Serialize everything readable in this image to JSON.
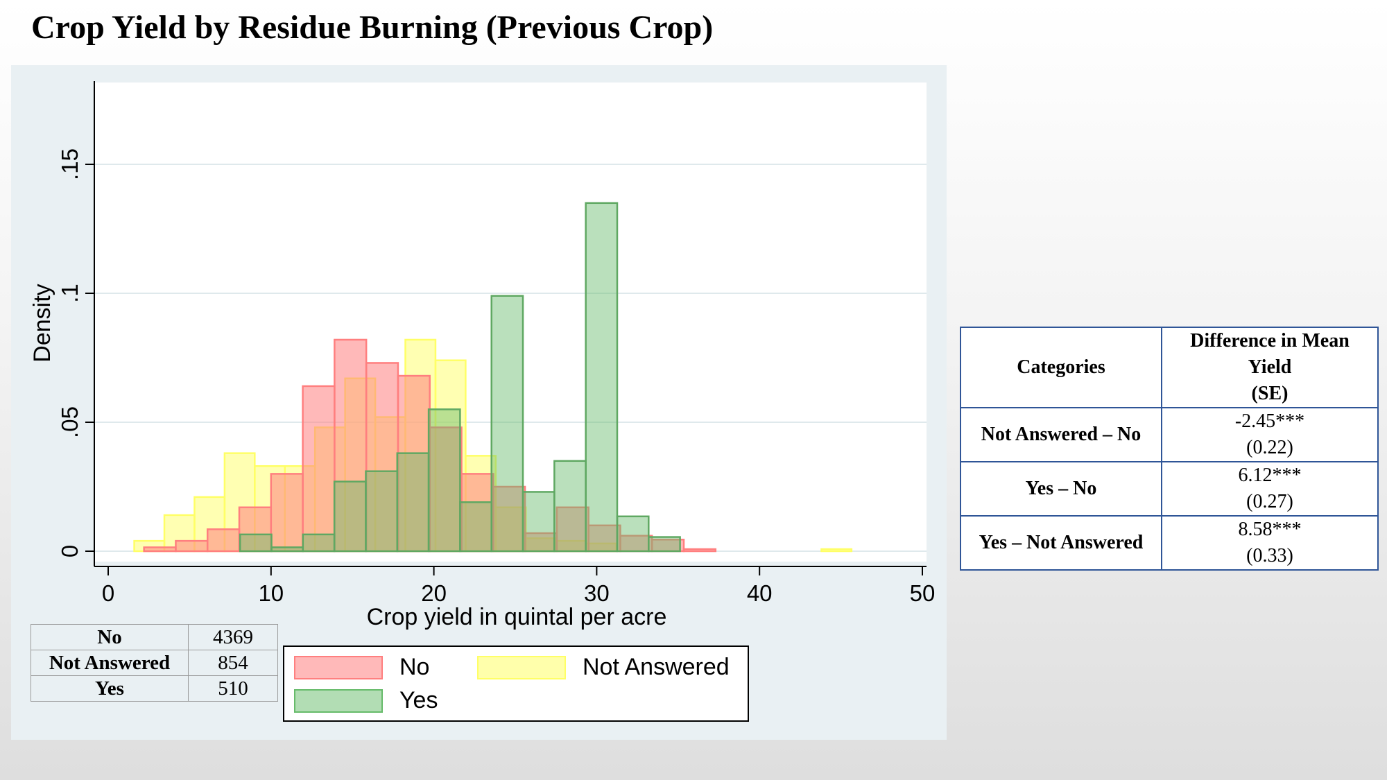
{
  "title": "Crop Yield by Residue Burning (Previous Crop)",
  "colors": {
    "No": "#ff7f7f",
    "Not Answered": "#ffff66",
    "Yes": "#66bb6a",
    "panel": "#e9f0f3",
    "table_border": "#2f5597"
  },
  "chart_data": {
    "type": "bar",
    "subtype": "overlaid-histogram",
    "xlabel": "Crop yield in quintal per acre",
    "ylabel": "Density",
    "xlim": [
      0,
      50
    ],
    "ylim": [
      0,
      0.15
    ],
    "xticks": [
      0,
      10,
      20,
      30,
      40,
      50
    ],
    "xtick_labels": [
      "0",
      "10",
      "20",
      "30",
      "40",
      "50"
    ],
    "yticks": [
      0,
      0.05,
      0.1,
      0.15
    ],
    "ytick_labels": [
      "0",
      ".05",
      ".1",
      ".15"
    ],
    "grid": "horizontal",
    "legend_position": "bottom",
    "series": [
      {
        "name": "Not Answered",
        "bin_width": 1.85,
        "bins": [
          {
            "x0": 1.6,
            "value": 0.004
          },
          {
            "x0": 3.45,
            "value": 0.014
          },
          {
            "x0": 5.3,
            "value": 0.021
          },
          {
            "x0": 7.15,
            "value": 0.038
          },
          {
            "x0": 9.0,
            "value": 0.033
          },
          {
            "x0": 10.85,
            "value": 0.033
          },
          {
            "x0": 12.7,
            "value": 0.048
          },
          {
            "x0": 14.55,
            "value": 0.067
          },
          {
            "x0": 16.4,
            "value": 0.052
          },
          {
            "x0": 18.25,
            "value": 0.082
          },
          {
            "x0": 20.1,
            "value": 0.074
          },
          {
            "x0": 21.95,
            "value": 0.037
          },
          {
            "x0": 23.8,
            "value": 0.017
          },
          {
            "x0": 25.65,
            "value": 0.005
          },
          {
            "x0": 27.5,
            "value": 0.004
          },
          {
            "x0": 29.35,
            "value": 0.003
          },
          {
            "x0": 43.8,
            "value": 0.0008
          }
        ]
      },
      {
        "name": "No",
        "bin_width": 1.95,
        "bins": [
          {
            "x0": 2.2,
            "value": 0.0015
          },
          {
            "x0": 4.15,
            "value": 0.004
          },
          {
            "x0": 6.1,
            "value": 0.0085
          },
          {
            "x0": 8.05,
            "value": 0.017
          },
          {
            "x0": 10.0,
            "value": 0.03
          },
          {
            "x0": 11.95,
            "value": 0.064
          },
          {
            "x0": 13.9,
            "value": 0.082
          },
          {
            "x0": 15.85,
            "value": 0.073
          },
          {
            "x0": 17.8,
            "value": 0.068
          },
          {
            "x0": 19.75,
            "value": 0.048
          },
          {
            "x0": 21.7,
            "value": 0.03
          },
          {
            "x0": 23.65,
            "value": 0.025
          },
          {
            "x0": 25.6,
            "value": 0.007
          },
          {
            "x0": 27.55,
            "value": 0.017
          },
          {
            "x0": 29.5,
            "value": 0.01
          },
          {
            "x0": 31.45,
            "value": 0.006
          },
          {
            "x0": 33.4,
            "value": 0.0045
          },
          {
            "x0": 35.35,
            "value": 0.0008
          }
        ]
      },
      {
        "name": "Yes",
        "bin_width": 1.93,
        "bins": [
          {
            "x0": 8.1,
            "value": 0.0065
          },
          {
            "x0": 10.03,
            "value": 0.0015
          },
          {
            "x0": 11.96,
            "value": 0.0065
          },
          {
            "x0": 13.89,
            "value": 0.027
          },
          {
            "x0": 15.82,
            "value": 0.031
          },
          {
            "x0": 17.75,
            "value": 0.038
          },
          {
            "x0": 19.68,
            "value": 0.055
          },
          {
            "x0": 21.61,
            "value": 0.019
          },
          {
            "x0": 23.54,
            "value": 0.099
          },
          {
            "x0": 25.47,
            "value": 0.023
          },
          {
            "x0": 27.4,
            "value": 0.035
          },
          {
            "x0": 29.33,
            "value": 0.135
          },
          {
            "x0": 31.26,
            "value": 0.0135
          },
          {
            "x0": 33.19,
            "value": 0.0055
          }
        ]
      }
    ]
  },
  "counts_table": [
    {
      "category": "No",
      "count": "4369"
    },
    {
      "category": "Not Answered",
      "count": "854"
    },
    {
      "category": "Yes",
      "count": "510"
    }
  ],
  "legend": [
    {
      "label": "No",
      "color": "#ff7f7f"
    },
    {
      "label": "Not Answered",
      "color": "#ffff66"
    },
    {
      "label": "Yes",
      "color": "#66bb6a"
    }
  ],
  "diff_table": {
    "header_category": "Categories",
    "header_diff_line1": "Difference in Mean",
    "header_diff_line2": "Yield",
    "header_diff_line3": "(SE)",
    "rows": [
      {
        "category": "Not Answered – No",
        "diff": "-2.45***",
        "se": "(0.22)"
      },
      {
        "category": "Yes – No",
        "diff": "6.12***",
        "se": "(0.27)"
      },
      {
        "category": "Yes – Not Answered",
        "diff": "8.58***",
        "se": "(0.33)"
      }
    ]
  }
}
